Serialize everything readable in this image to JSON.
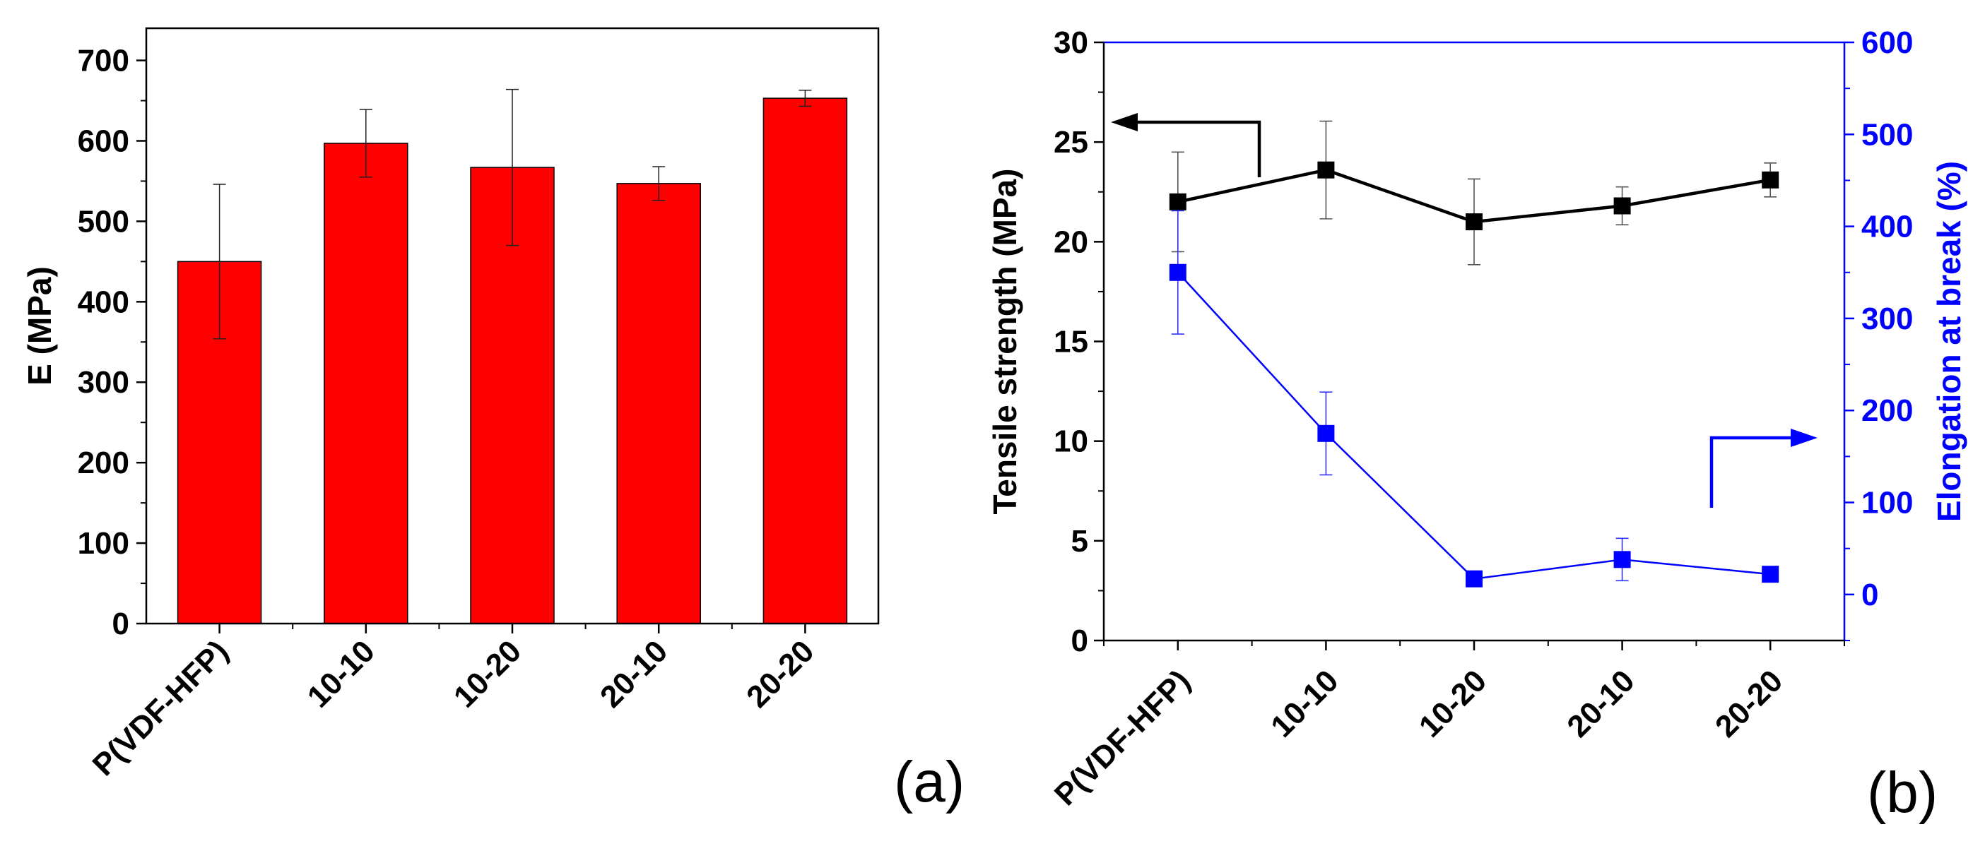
{
  "chart_data": [
    {
      "type": "bar",
      "panel_label": "(a)",
      "ylabel": "E (MPa)",
      "xlabel": "",
      "categories": [
        "P(VDF-HFP)",
        "10-10",
        "10-20",
        "20-10",
        "20-20"
      ],
      "values": [
        450,
        597,
        567,
        547,
        653
      ],
      "errors": [
        96,
        42,
        97,
        21,
        10
      ],
      "ylim": [
        0,
        740
      ],
      "yticks": [
        0,
        100,
        200,
        300,
        400,
        500,
        600,
        700
      ],
      "ytick_labels": [
        "0",
        "100",
        "200",
        "300",
        "400",
        "500",
        "600",
        "700"
      ],
      "bar_color": "#ff0000",
      "grid": false
    },
    {
      "type": "line",
      "panel_label": "(b)",
      "categories": [
        "P(VDF-HFP)",
        "10-10",
        "10-20",
        "20-10",
        "20-20"
      ],
      "xlabel": "",
      "ylabel_left": "Tensile strength (MPa)",
      "ylabel_right": "Elongation at break (%)",
      "ylim_left": [
        0,
        30
      ],
      "ylim_right": [
        -50,
        600
      ],
      "yticks_left": [
        0,
        5,
        10,
        15,
        20,
        25,
        30
      ],
      "ytick_labels_left": [
        "0",
        "5",
        "10",
        "15",
        "20",
        "25",
        "30"
      ],
      "yticks_right": [
        0,
        100,
        200,
        300,
        400,
        500,
        600
      ],
      "ytick_labels_right": [
        "0",
        "100",
        "200",
        "300",
        "400",
        "500",
        "600"
      ],
      "series": [
        {
          "name": "Tensile strength",
          "axis": "left",
          "color": "#000000",
          "values": [
            22.0,
            23.6,
            21.0,
            21.8,
            23.1
          ],
          "errors": [
            2.5,
            2.45,
            2.15,
            0.95,
            0.85
          ]
        },
        {
          "name": "Elongation at break",
          "axis": "right",
          "color": "#0000ff",
          "values": [
            350,
            175,
            17,
            38,
            22
          ],
          "errors": [
            67,
            45,
            5,
            23,
            5
          ]
        }
      ],
      "grid": false
    }
  ]
}
